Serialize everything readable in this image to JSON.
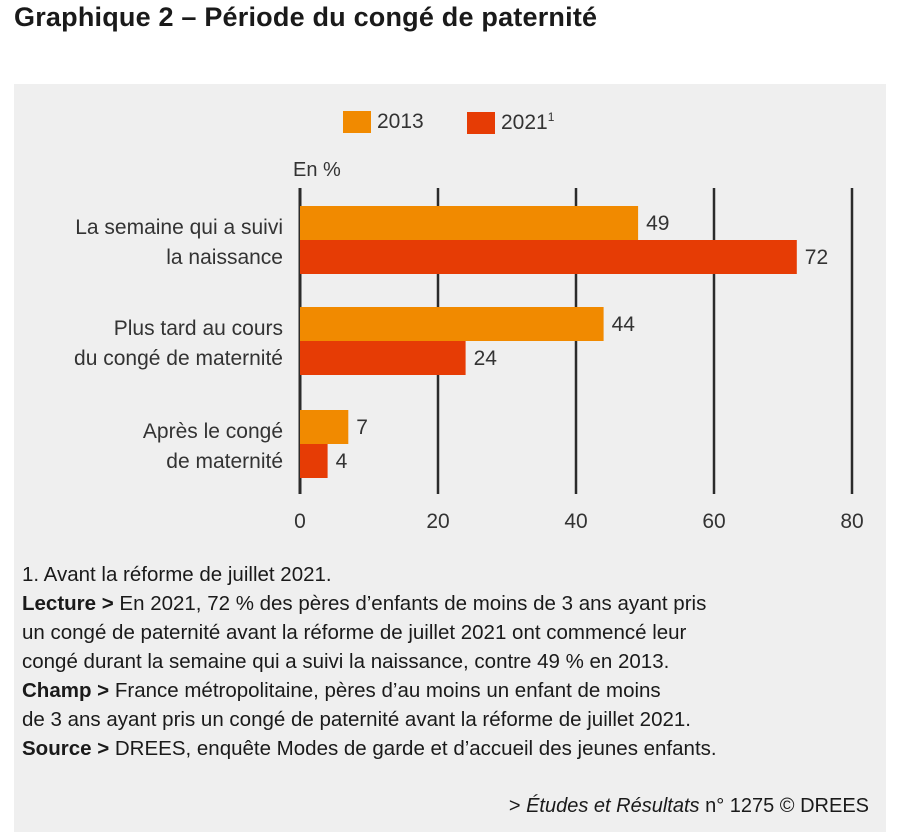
{
  "title": "Graphique 2 – Période du congé de paternité",
  "legend": {
    "items": [
      {
        "label": "2013",
        "sup": "",
        "color": "#f18a00"
      },
      {
        "label": "2021",
        "sup": "1",
        "color": "#e63c05"
      }
    ]
  },
  "chart_data": {
    "type": "bar",
    "orientation": "horizontal",
    "unit_label": "En %",
    "categories": [
      [
        "La semaine qui a suivi",
        "la naissance"
      ],
      [
        "Plus tard au cours",
        "du congé de maternité"
      ],
      [
        "Après le congé",
        "de maternité"
      ]
    ],
    "series": [
      {
        "name": "2013",
        "color": "#f18a00",
        "values": [
          49,
          44,
          7
        ]
      },
      {
        "name": "2021",
        "color": "#e63c05",
        "values": [
          72,
          24,
          4
        ]
      }
    ],
    "xlim": [
      0,
      80
    ],
    "xticks": [
      "0",
      "20",
      "40",
      "60",
      "80"
    ],
    "grid": true
  },
  "notes": {
    "footnote": "1. Avant la réforme de juillet 2021.",
    "lecture_label": "Lecture >",
    "lecture_lines": [
      " En 2021, 72 %  des pères d’enfants de moins de 3 ans ayant pris",
      "un congé de paternité avant la réforme de juillet 2021 ont commencé leur",
      "congé durant la semaine qui a suivi la naissance, contre 49 % en 2013."
    ],
    "champ_label": "Champ >",
    "champ_lines": [
      " France métropolitaine, pères d’au moins un enfant de moins",
      "de 3 ans ayant pris un congé de paternité avant la réforme de juillet 2021."
    ],
    "source_label": "Source >",
    "source_text": " DREES, enquête Modes de garde et d’accueil des jeunes enfants."
  },
  "footer": {
    "prefix": "> ",
    "italic": "Études et Résultats",
    "suffix": " n° 1275 © DREES"
  }
}
